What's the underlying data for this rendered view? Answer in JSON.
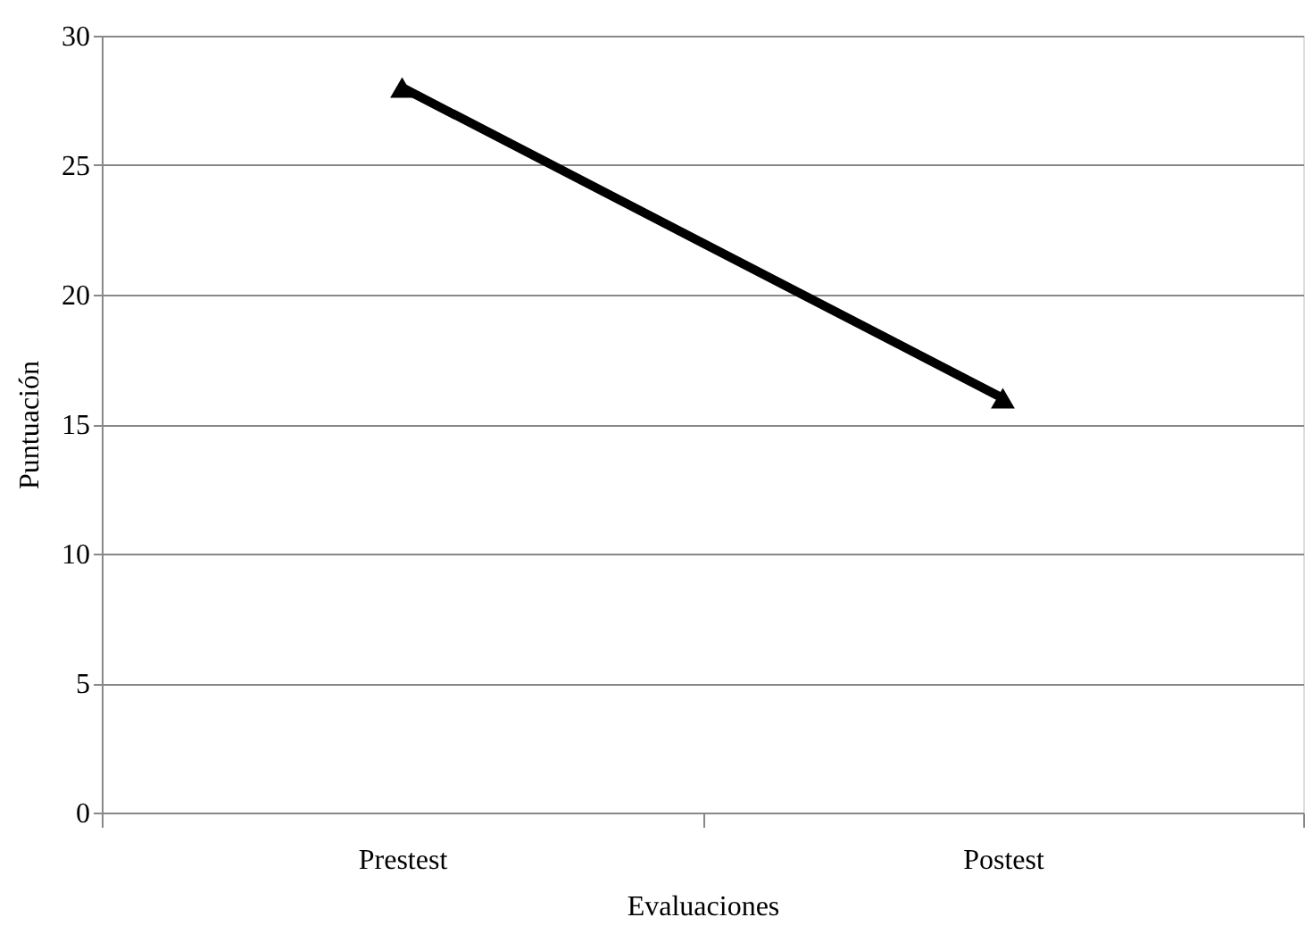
{
  "chart_data": {
    "type": "line",
    "categories": [
      "Prestest",
      "Postest"
    ],
    "series": [
      {
        "color": "#000000",
        "values": [
          28,
          16
        ]
      }
    ],
    "xlabel": "Evaluaciones",
    "ylabel": "Puntuación",
    "ylim": [
      0,
      30
    ],
    "yticks": [
      0,
      5,
      10,
      15,
      20,
      25,
      30
    ],
    "grid": "y",
    "marker": "triangle",
    "line_style": "solid"
  }
}
